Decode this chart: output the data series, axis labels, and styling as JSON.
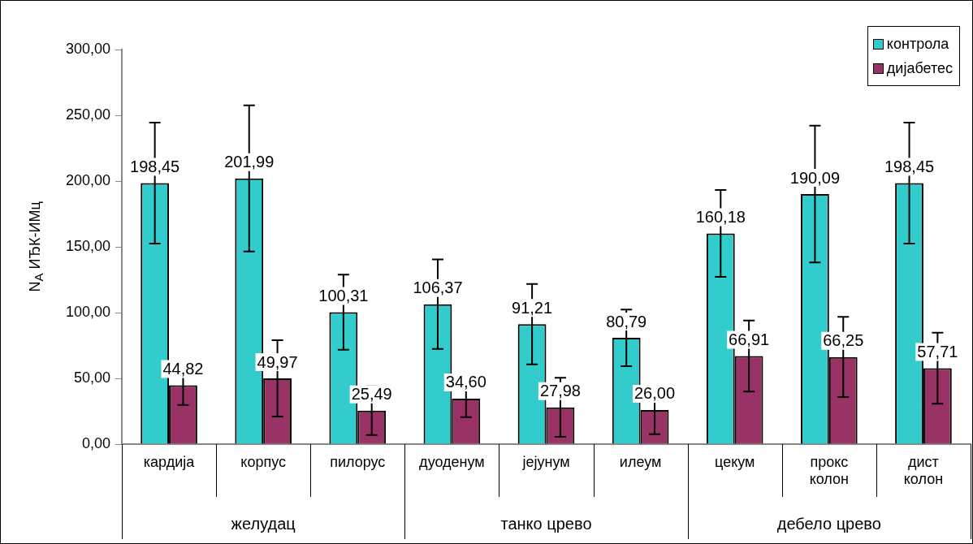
{
  "chart_data": {
    "type": "bar",
    "ylabel": "N$_{A}$ ИЂК-ИМц",
    "categories": [
      "кардија",
      "корпус",
      "пилорус",
      "дуоденум",
      "јејунум",
      "илеум",
      "цекум",
      "прокс колон",
      "дист колон"
    ],
    "series": [
      {
        "name": "контрола",
        "color": "#33cccc",
        "values": [
          198.45,
          201.99,
          100.31,
          106.37,
          91.21,
          80.79,
          160.18,
          190.09,
          198.45
        ],
        "errors": [
          46,
          55.5,
          28.5,
          34,
          30.5,
          21.5,
          33,
          52,
          46
        ],
        "value_labels": [
          "198,45",
          "201,99",
          "100,31",
          "106,37",
          "91,21",
          "80,79",
          "160,18",
          "190,09",
          "198,45"
        ]
      },
      {
        "name": "дијабетес",
        "color": "#993366",
        "values": [
          44.82,
          49.97,
          25.49,
          34.6,
          27.98,
          26,
          66.91,
          66.25,
          57.71
        ],
        "errors": [
          15,
          29,
          18.5,
          14,
          22.5,
          18.5,
          27,
          30.5,
          27
        ],
        "value_labels": [
          "44,82",
          "49,97",
          "25,49",
          "34,60",
          "27,98",
          "26,00",
          "66,91",
          "66,25",
          "57,71"
        ]
      }
    ],
    "ylim": [
      0,
      300
    ],
    "yticks": [
      {
        "value": 0,
        "label": "0,00"
      },
      {
        "value": 50,
        "label": "50,00"
      },
      {
        "value": 100,
        "label": "100,00"
      },
      {
        "value": 150,
        "label": "150,00"
      },
      {
        "value": 200,
        "label": "200,00"
      },
      {
        "value": 250,
        "label": "250,00"
      },
      {
        "value": 300,
        "label": "300,00"
      }
    ],
    "annotations": [
      "желудац",
      "танко црево",
      "дебело црево"
    ],
    "grid": false,
    "legend": "top right"
  }
}
